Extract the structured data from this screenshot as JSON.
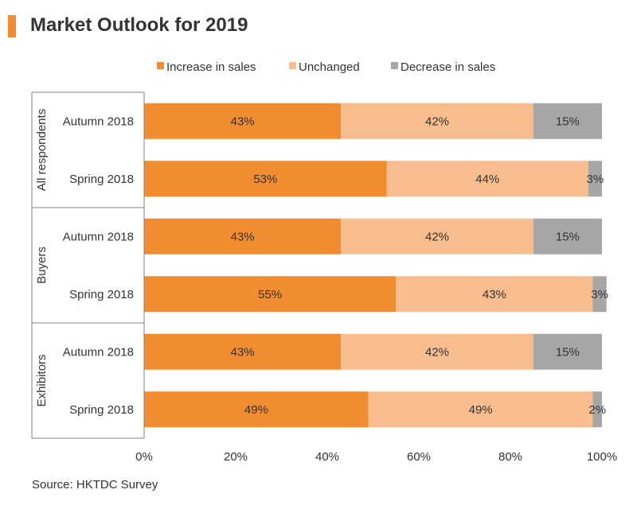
{
  "title": "Market Outlook for 2019",
  "source": "Source: HKTDC Survey",
  "colors": {
    "accent": "#f28c30",
    "increase": "#f28c30",
    "unchanged": "#f8bd8e",
    "decrease": "#a6a6a6",
    "axis": "#808080",
    "text": "#333333"
  },
  "chart_data": {
    "type": "bar",
    "orientation": "horizontal",
    "stacked": true,
    "xlim": [
      0,
      100
    ],
    "x_ticks": [
      "0%",
      "20%",
      "40%",
      "60%",
      "80%",
      "100%"
    ],
    "legend_position": "top",
    "series": [
      {
        "name": "Increase in sales",
        "color": "#f28c30"
      },
      {
        "name": "Unchanged",
        "color": "#f8bd8e"
      },
      {
        "name": "Decrease in sales",
        "color": "#a6a6a6"
      }
    ],
    "groups": [
      {
        "name": "All respondents",
        "rows": [
          {
            "label": "Autumn 2018",
            "values": [
              43,
              42,
              15
            ],
            "labels": [
              "43%",
              "42%",
              "15%"
            ]
          },
          {
            "label": "Spring 2018",
            "values": [
              53,
              44,
              3
            ],
            "labels": [
              "53%",
              "44%",
              "3%"
            ]
          }
        ]
      },
      {
        "name": "Buyers",
        "rows": [
          {
            "label": "Autumn 2018",
            "values": [
              43,
              42,
              15
            ],
            "labels": [
              "43%",
              "42%",
              "15%"
            ]
          },
          {
            "label": "Spring 2018",
            "values": [
              55,
              43,
              3
            ],
            "labels": [
              "55%",
              "43%",
              "3%"
            ]
          }
        ]
      },
      {
        "name": "Exhibitors",
        "rows": [
          {
            "label": "Autumn 2018",
            "values": [
              43,
              42,
              15
            ],
            "labels": [
              "43%",
              "42%",
              "15%"
            ]
          },
          {
            "label": "Spring 2018",
            "values": [
              49,
              49,
              2
            ],
            "labels": [
              "49%",
              "49%",
              "2%"
            ]
          }
        ]
      }
    ]
  }
}
